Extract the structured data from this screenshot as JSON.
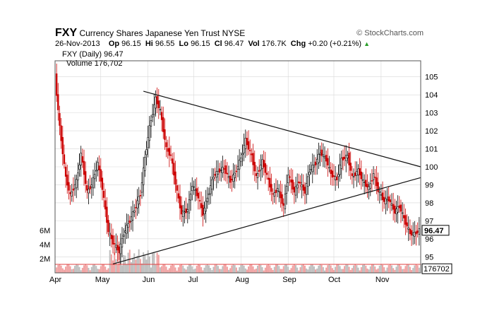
{
  "header": {
    "symbol": "FXY",
    "name": "Currency Shares Japanese Yen Trust NYSE",
    "watermark": "© StockCharts.com",
    "date": "26-Nov-2013",
    "op_label": "Op",
    "op": "96.15",
    "hi_label": "Hi",
    "hi": "96.55",
    "lo_label": "Lo",
    "lo": "96.15",
    "cl_label": "Cl",
    "cl": "96.47",
    "vol_label": "Vol",
    "vol": "176.7K",
    "chg_label": "Chg",
    "chg": "+0.20 (+0.21%)"
  },
  "legend": {
    "price": "FXY (Daily) 96.47",
    "volume": "Volume 176,702"
  },
  "colors": {
    "up": "#000000",
    "down": "#cc0000",
    "volume_up": "#bdbdbd",
    "volume_down": "#f0a0a0",
    "volume_line": "#e04040",
    "grid": "#d8d8d8"
  },
  "chart_data": {
    "type": "candlestick",
    "title": "FXY (Daily) 96.47",
    "x_labels": [
      "Apr",
      "May",
      "Jun",
      "Jul",
      "Aug",
      "Sep",
      "Oct",
      "Nov"
    ],
    "x_label_days": [
      0,
      30,
      61,
      91,
      122,
      153,
      183,
      214
    ],
    "x_range_days": [
      0,
      240
    ],
    "y_ticks": [
      95,
      96,
      97,
      98,
      99,
      100,
      101,
      102,
      103,
      104,
      105
    ],
    "ylim": [
      94.5,
      105.5
    ],
    "volume_ticks": [
      "2M",
      "4M",
      "6M"
    ],
    "volume_tick_values": [
      2,
      4,
      6
    ],
    "volume_ylim_millions": [
      0,
      10
    ],
    "current_price_label": "96.47",
    "current_volume_label": "176702",
    "current_price": 96.47,
    "current_volume_millions": 0.177,
    "closes_weekly": [
      {
        "day": 0,
        "close": 105.0
      },
      {
        "day": 3,
        "close": 102.2
      },
      {
        "day": 7,
        "close": 99.4
      },
      {
        "day": 10,
        "close": 98.4
      },
      {
        "day": 14,
        "close": 99.2
      },
      {
        "day": 17,
        "close": 100.7
      },
      {
        "day": 21,
        "close": 98.6
      },
      {
        "day": 24,
        "close": 99.0
      },
      {
        "day": 28,
        "close": 100.2
      },
      {
        "day": 31,
        "close": 98.8
      },
      {
        "day": 35,
        "close": 96.4
      },
      {
        "day": 38,
        "close": 95.8
      },
      {
        "day": 42,
        "close": 95.3
      },
      {
        "day": 45,
        "close": 96.3
      },
      {
        "day": 49,
        "close": 97.0
      },
      {
        "day": 52,
        "close": 97.6
      },
      {
        "day": 56,
        "close": 98.5
      },
      {
        "day": 59,
        "close": 100.5
      },
      {
        "day": 62,
        "close": 102.2
      },
      {
        "day": 66,
        "close": 103.8
      },
      {
        "day": 69,
        "close": 103.1
      },
      {
        "day": 73,
        "close": 101.0
      },
      {
        "day": 76,
        "close": 100.6
      },
      {
        "day": 80,
        "close": 98.6
      },
      {
        "day": 83,
        "close": 97.4
      },
      {
        "day": 87,
        "close": 97.6
      },
      {
        "day": 90,
        "close": 99.0
      },
      {
        "day": 94,
        "close": 98.3
      },
      {
        "day": 97,
        "close": 97.4
      },
      {
        "day": 101,
        "close": 98.6
      },
      {
        "day": 104,
        "close": 99.5
      },
      {
        "day": 108,
        "close": 99.8
      },
      {
        "day": 111,
        "close": 99.9
      },
      {
        "day": 115,
        "close": 99.2
      },
      {
        "day": 118,
        "close": 99.6
      },
      {
        "day": 122,
        "close": 100.5
      },
      {
        "day": 125,
        "close": 101.5
      },
      {
        "day": 129,
        "close": 100.6
      },
      {
        "day": 132,
        "close": 99.4
      },
      {
        "day": 136,
        "close": 100.3
      },
      {
        "day": 139,
        "close": 99.5
      },
      {
        "day": 143,
        "close": 98.4
      },
      {
        "day": 146,
        "close": 98.8
      },
      {
        "day": 150,
        "close": 97.8
      },
      {
        "day": 153,
        "close": 99.6
      },
      {
        "day": 157,
        "close": 98.6
      },
      {
        "day": 160,
        "close": 99.2
      },
      {
        "day": 164,
        "close": 98.6
      },
      {
        "day": 167,
        "close": 99.8
      },
      {
        "day": 171,
        "close": 100.2
      },
      {
        "day": 174,
        "close": 100.8
      },
      {
        "day": 178,
        "close": 100.4
      },
      {
        "day": 181,
        "close": 99.6
      },
      {
        "day": 185,
        "close": 99.3
      },
      {
        "day": 188,
        "close": 100.4
      },
      {
        "day": 192,
        "close": 100.6
      },
      {
        "day": 195,
        "close": 99.4
      },
      {
        "day": 199,
        "close": 99.8
      },
      {
        "day": 202,
        "close": 99.2
      },
      {
        "day": 206,
        "close": 98.8
      },
      {
        "day": 209,
        "close": 99.6
      },
      {
        "day": 212,
        "close": 98.7
      },
      {
        "day": 216,
        "close": 98.1
      },
      {
        "day": 219,
        "close": 98.2
      },
      {
        "day": 223,
        "close": 97.5
      },
      {
        "day": 226,
        "close": 97.8
      },
      {
        "day": 230,
        "close": 96.9
      },
      {
        "day": 233,
        "close": 96.3
      },
      {
        "day": 236,
        "close": 96.27
      },
      {
        "day": 239,
        "close": 96.47
      }
    ],
    "trendlines": [
      {
        "name": "upper",
        "from": {
          "day": 58,
          "price": 104.2
        },
        "to": {
          "day": 240,
          "price": 100.0
        }
      },
      {
        "name": "lower",
        "from": {
          "day": 38,
          "price": 94.6
        },
        "to": {
          "day": 240,
          "price": 99.4
        }
      }
    ]
  }
}
